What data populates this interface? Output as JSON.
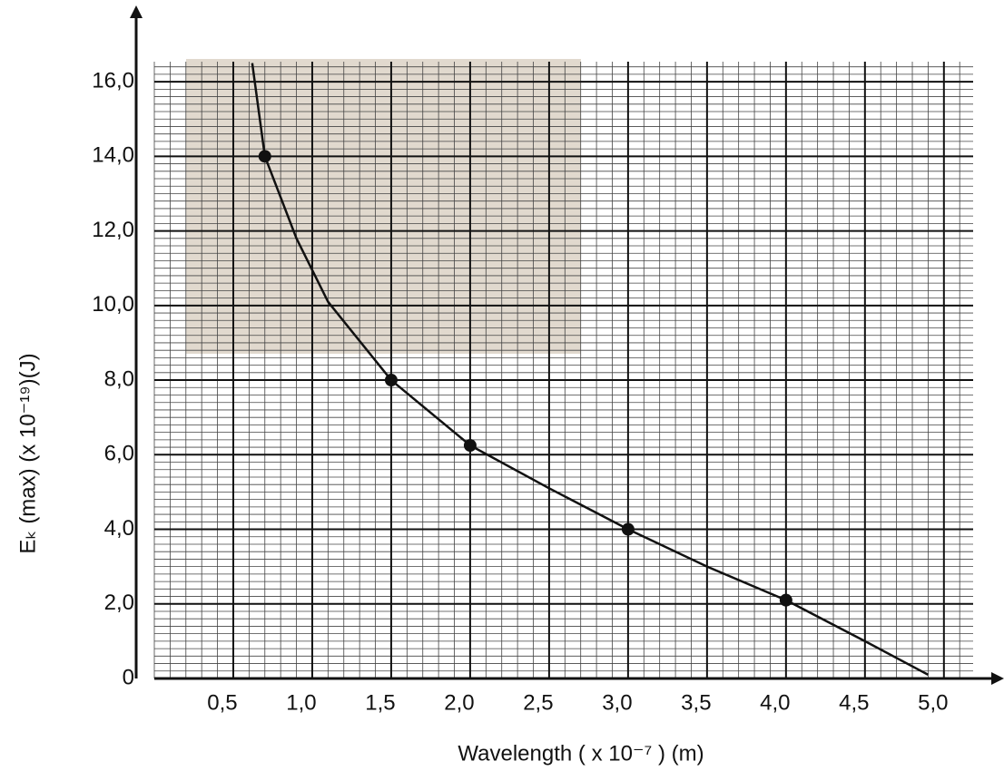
{
  "chart_data": {
    "type": "scatter",
    "x": [
      0.7,
      1.5,
      2.0,
      3.0,
      4.0
    ],
    "values": [
      14.0,
      8.0,
      6.25,
      4.0,
      2.1
    ],
    "curve": {
      "x": [
        0.62,
        0.7,
        0.9,
        1.1,
        1.5,
        2.0,
        2.5,
        3.0,
        3.5,
        4.0,
        4.5,
        4.9
      ],
      "values": [
        16.5,
        14.0,
        11.8,
        10.1,
        8.0,
        6.25,
        5.1,
        4.0,
        3.0,
        2.1,
        1.0,
        0.1
      ]
    },
    "color": "#111111",
    "xlabel": "Wavelength  ( x 10⁻⁷ ) (m)",
    "ylabel": "Eₖ (max) (x 10⁻¹⁹)(J)",
    "xlim": [
      0,
      5.3
    ],
    "ylim": [
      0,
      17
    ],
    "xticks": [
      {
        "value": 0.5,
        "label": "0,5"
      },
      {
        "value": 1.0,
        "label": "1,0"
      },
      {
        "value": 1.5,
        "label": "1,5"
      },
      {
        "value": 2.0,
        "label": "2,0"
      },
      {
        "value": 2.5,
        "label": "2,5"
      },
      {
        "value": 3.0,
        "label": "3,0"
      },
      {
        "value": 3.5,
        "label": "3,5"
      },
      {
        "value": 4.0,
        "label": "4,0"
      },
      {
        "value": 4.5,
        "label": "4,5"
      },
      {
        "value": 5.0,
        "label": "5,0"
      }
    ],
    "yticks": [
      0,
      {
        "value": 2,
        "label": "2,0"
      },
      {
        "value": 4,
        "label": "4,0"
      },
      {
        "value": 6,
        "label": "6,0"
      },
      {
        "value": 8,
        "label": "8,0"
      },
      {
        "value": 10,
        "label": "10,0"
      },
      {
        "value": 12,
        "label": "12,0"
      },
      {
        "value": 14,
        "label": "14,0"
      },
      {
        "value": 16,
        "label": "16,0"
      }
    ],
    "grid": true
  }
}
